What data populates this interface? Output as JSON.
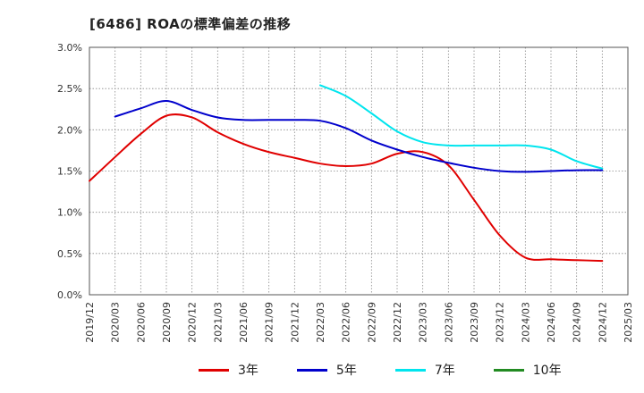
{
  "chart_data": {
    "type": "line",
    "title": "[6486]  ROAの標準偏差の推移",
    "xlabel": "",
    "ylabel": "",
    "ylim": [
      0,
      3.0
    ],
    "y_ticks": [
      "0.0%",
      "0.5%",
      "1.0%",
      "1.5%",
      "2.0%",
      "2.5%",
      "3.0%"
    ],
    "x_ticks": [
      "2019/12",
      "2020/03",
      "2020/06",
      "2020/09",
      "2020/12",
      "2021/03",
      "2021/06",
      "2021/09",
      "2021/12",
      "2022/03",
      "2022/06",
      "2022/09",
      "2022/12",
      "2023/03",
      "2023/06",
      "2023/09",
      "2023/12",
      "2024/03",
      "2024/06",
      "2024/09",
      "2024/12",
      "2025/03"
    ],
    "grid": true,
    "legend_position": "bottom",
    "series": [
      {
        "name": "3年",
        "color": "#e00000",
        "values": [
          1.38,
          1.67,
          1.95,
          2.17,
          2.15,
          1.97,
          1.83,
          1.73,
          1.66,
          1.59,
          1.56,
          1.59,
          1.71,
          1.73,
          1.57,
          1.15,
          0.72,
          0.45,
          0.43,
          0.42,
          0.41
        ]
      },
      {
        "name": "5年",
        "color": "#0000cc",
        "values": [
          null,
          2.16,
          2.26,
          2.35,
          2.24,
          2.15,
          2.12,
          2.12,
          2.12,
          2.11,
          2.02,
          1.87,
          1.76,
          1.67,
          1.6,
          1.54,
          1.5,
          1.49,
          1.5,
          1.51,
          1.51
        ]
      },
      {
        "name": "7年",
        "color": "#00e5ee",
        "values": [
          null,
          null,
          null,
          null,
          null,
          null,
          null,
          null,
          null,
          2.54,
          2.41,
          2.2,
          1.98,
          1.85,
          1.81,
          1.81,
          1.81,
          1.81,
          1.76,
          1.62,
          1.53
        ]
      },
      {
        "name": "10年",
        "color": "#228b22",
        "values": []
      }
    ]
  }
}
